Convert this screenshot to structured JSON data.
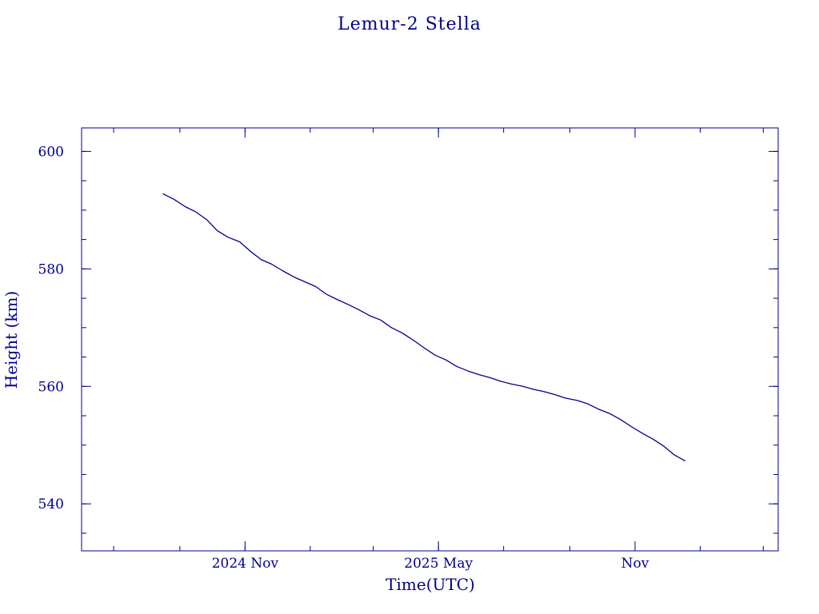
{
  "chart_data": {
    "type": "line",
    "title": "Lemur-2 Stella",
    "xlabel": "Time(UTC)",
    "ylabel": "Height (km)",
    "color": "#00008b",
    "x_tick_labels": [
      {
        "date": "2024-11-01",
        "label": "2024 Nov"
      },
      {
        "date": "2025-05-01",
        "label": "2025 May"
      },
      {
        "date": "2025-11-01",
        "label": "Nov"
      }
    ],
    "x_minor_ticks": [
      "2024-07-01",
      "2024-09-01",
      "2024-11-01",
      "2025-01-01",
      "2025-03-01",
      "2025-05-01",
      "2025-07-01",
      "2025-09-01",
      "2025-11-01",
      "2026-01-01",
      "2026-03-01"
    ],
    "xlim": [
      "2024-06-01",
      "2026-03-15"
    ],
    "y_ticks": [
      540,
      560,
      580,
      600
    ],
    "y_minor_step": 5,
    "ylim": [
      532,
      604
    ],
    "grid": false,
    "series": [
      {
        "x": [
          "2024-08-16",
          "2024-08-26",
          "2024-09-06",
          "2024-09-16",
          "2024-09-26",
          "2024-10-06",
          "2024-10-16",
          "2024-10-27",
          "2024-11-06",
          "2024-11-16",
          "2024-11-26",
          "2024-12-06",
          "2024-12-17",
          "2024-12-27",
          "2025-01-06",
          "2025-01-16",
          "2025-01-26",
          "2025-02-06",
          "2025-02-16",
          "2025-02-26",
          "2025-03-08",
          "2025-03-18",
          "2025-03-28",
          "2025-04-08",
          "2025-04-18",
          "2025-04-28",
          "2025-05-08",
          "2025-05-18",
          "2025-05-29",
          "2025-06-08",
          "2025-06-18",
          "2025-06-28",
          "2025-07-08",
          "2025-07-19",
          "2025-07-29",
          "2025-08-08",
          "2025-08-18",
          "2025-08-28",
          "2025-09-08",
          "2025-09-18",
          "2025-09-28",
          "2025-10-08",
          "2025-10-18",
          "2025-10-29",
          "2025-11-08",
          "2025-11-18",
          "2025-11-28",
          "2025-12-08",
          "2025-12-18"
        ],
        "y": [
          592.8,
          591.9,
          590.6,
          589.7,
          588.4,
          586.5,
          585.4,
          584.6,
          583.0,
          581.6,
          580.8,
          579.7,
          578.6,
          577.8,
          577.0,
          575.7,
          574.8,
          573.9,
          573.0,
          572.0,
          571.3,
          570.0,
          569.1,
          567.8,
          566.5,
          565.3,
          564.5,
          563.4,
          562.6,
          562.0,
          561.5,
          560.9,
          560.4,
          560.0,
          559.5,
          559.1,
          558.6,
          558.0,
          557.6,
          557.0,
          556.1,
          555.4,
          554.4,
          553.1,
          552.0,
          551.0,
          549.8,
          548.3,
          547.3
        ]
      }
    ]
  }
}
